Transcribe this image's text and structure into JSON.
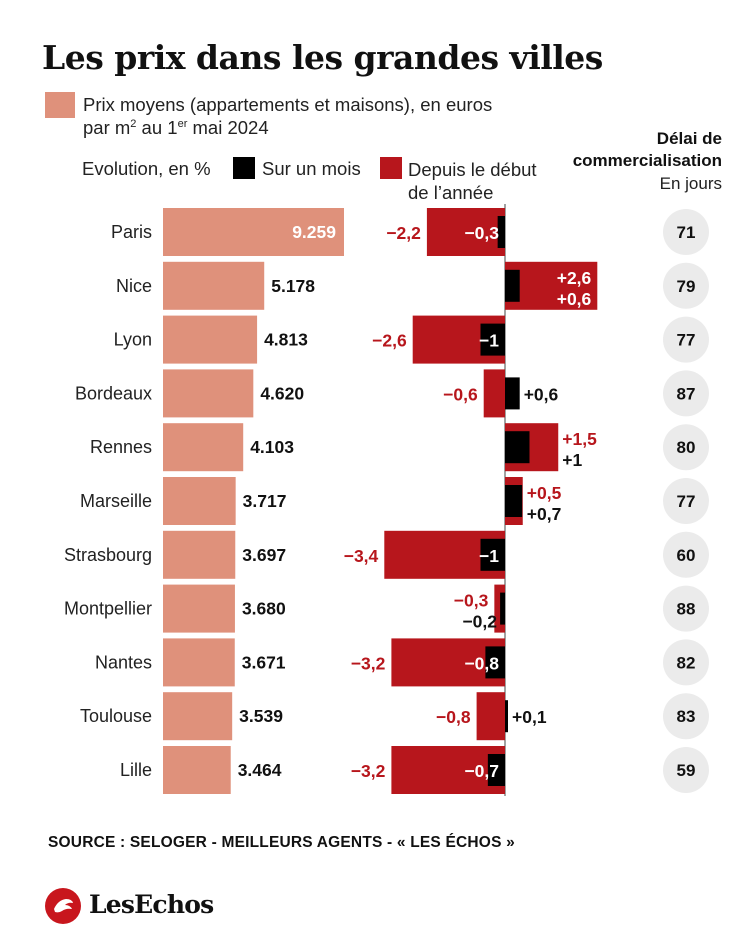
{
  "title": "Les prix dans les grandes villes",
  "legend": {
    "price_line1": "Prix moyens (appartements et maisons), en euros",
    "price_line2_a": "par m",
    "price_line2_sup1": "2",
    "price_line2_b": " au 1",
    "price_line2_sup2": "er",
    "price_line2_c": " mai 2024",
    "evolution_label": "Evolution, en %",
    "month_label": "Sur un mois",
    "year_label_line1": "Depuis le début",
    "year_label_line2": "de l’année"
  },
  "delai": {
    "title_line1": "Délai de",
    "title_line2": "commercialisation",
    "subtitle": "En jours"
  },
  "source": "SOURCE : SELOGER - MEILLEURS AGENTS - « LES ÉCHOS »",
  "logo_text": "LesEchos",
  "colors": {
    "price": "#df917b",
    "year": "#b7161c",
    "month": "#000000",
    "circle": "#ebebeb"
  },
  "chart_data": {
    "type": "bar",
    "categories": [
      "Paris",
      "Nice",
      "Lyon",
      "Bordeaux",
      "Rennes",
      "Marseille",
      "Strasbourg",
      "Montpellier",
      "Nantes",
      "Toulouse",
      "Lille"
    ],
    "price_labels": [
      "9.259",
      "5.178",
      "4.813",
      "4.620",
      "4.103",
      "3.717",
      "3.697",
      "3.680",
      "3.671",
      "3.539",
      "3.464"
    ],
    "price_values": [
      9259,
      5178,
      4813,
      4620,
      4103,
      3717,
      3697,
      3680,
      3671,
      3539,
      3464
    ],
    "year_values": [
      -2.2,
      2.6,
      -2.6,
      -0.6,
      1.5,
      0.5,
      -3.4,
      -0.3,
      -3.2,
      -0.8,
      -3.2
    ],
    "year_labels": [
      "−2,2",
      "+2,6",
      "−2,6",
      "−0,6",
      "+1,5",
      "+0,5",
      "−3,4",
      "−0,3",
      "−3,2",
      "−0,8",
      "−3,2"
    ],
    "month_values": [
      -0.3,
      0.6,
      -1,
      0.6,
      1,
      0.7,
      -1,
      -0.2,
      -0.8,
      0.1,
      -0.7
    ],
    "month_labels": [
      "−0,3",
      "+0,6",
      "−1",
      "+0,6",
      "+1",
      "+0,7",
      "−1",
      "−0,2",
      "−0,8",
      "+0,1",
      "−0,7"
    ],
    "delai_days": [
      "71",
      "79",
      "77",
      "87",
      "80",
      "77",
      "60",
      "88",
      "82",
      "83",
      "59"
    ]
  }
}
